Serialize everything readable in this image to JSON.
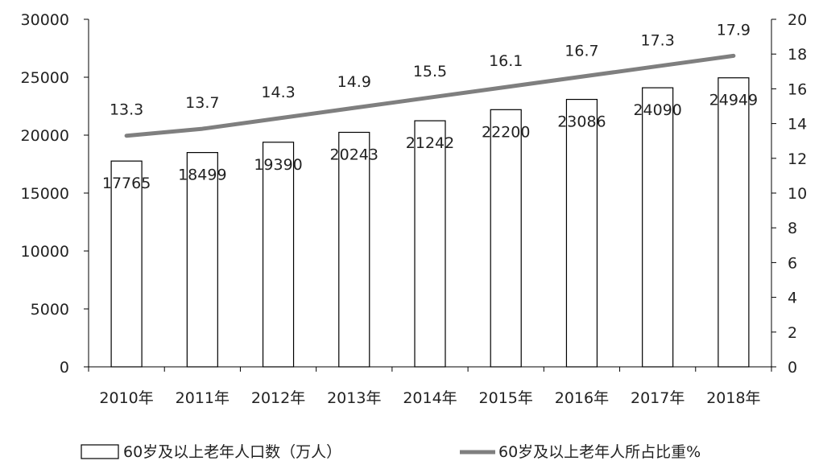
{
  "chart_data": {
    "type": "bar+line",
    "categories": [
      "2010年",
      "2011年",
      "2012年",
      "2013年",
      "2014年",
      "2015年",
      "2016年",
      "2017年",
      "2018年"
    ],
    "series": [
      {
        "name": "60岁及以上老年人口数（万人）",
        "type": "bar",
        "axis": "left",
        "values": [
          17765,
          18499,
          19390,
          20243,
          21242,
          22200,
          23086,
          24090,
          24949
        ],
        "labels": [
          "17765",
          "18499",
          "19390",
          "20243",
          "21242",
          "22200",
          "23086",
          "24090",
          "24949"
        ]
      },
      {
        "name": "60岁及以上老年人所占比重%",
        "type": "line",
        "axis": "right",
        "values": [
          13.3,
          13.7,
          14.3,
          14.9,
          15.5,
          16.1,
          16.7,
          17.3,
          17.9
        ],
        "labels": [
          "13.3",
          "13.7",
          "14.3",
          "14.9",
          "15.5",
          "16.1",
          "16.7",
          "17.3",
          "17.9"
        ]
      }
    ],
    "y_left": {
      "ylim": [
        0,
        30000
      ],
      "ticks": [
        "0",
        "5000",
        "10000",
        "15000",
        "20000",
        "25000",
        "30000"
      ]
    },
    "y_right": {
      "ylim": [
        0,
        20
      ],
      "ticks": [
        "0",
        "2",
        "4",
        "6",
        "8",
        "10",
        "12",
        "14",
        "16",
        "18",
        "20"
      ]
    },
    "legend": {
      "position": "bottom"
    },
    "colors": {
      "bar_fill": "#ffffff",
      "bar_stroke": "#000000",
      "line": "#7f7f7f",
      "axis": "#000000"
    }
  }
}
